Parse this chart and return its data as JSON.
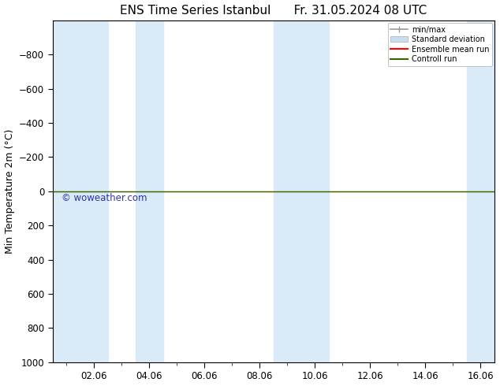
{
  "title": "ENS Time Series Istanbul      Fr. 31.05.2024 08 UTC",
  "ylabel": "Min Temperature 2m (°C)",
  "ylim": [
    -1000,
    1000
  ],
  "yticks": [
    -800,
    -600,
    -400,
    -200,
    0,
    200,
    400,
    600,
    800,
    1000
  ],
  "xtick_labels": [
    "02.06",
    "04.06",
    "06.06",
    "08.06",
    "10.06",
    "12.06",
    "14.06",
    "16.06"
  ],
  "xtick_positions": [
    2,
    4,
    6,
    8,
    10,
    12,
    14,
    16
  ],
  "xlim": [
    0.5,
    16.5
  ],
  "shaded_bands": [
    [
      0.5,
      2.5
    ],
    [
      3.5,
      4.5
    ],
    [
      8.5,
      10.5
    ],
    [
      15.5,
      16.5
    ]
  ],
  "control_run_y": 0,
  "ensemble_mean_y": 0,
  "shaded_color": "#daeaf7",
  "control_run_color": "#336600",
  "ensemble_mean_color": "#ff0000",
  "minmax_color": "#999999",
  "stddev_color": "#c8ddf0",
  "background_color": "#ffffff",
  "watermark": "© woweather.com",
  "watermark_color": "#3333aa",
  "legend_labels": [
    "min/max",
    "Standard deviation",
    "Ensemble mean run",
    "Controll run"
  ],
  "title_fontsize": 11,
  "ylabel_fontsize": 9,
  "tick_fontsize": 8.5
}
